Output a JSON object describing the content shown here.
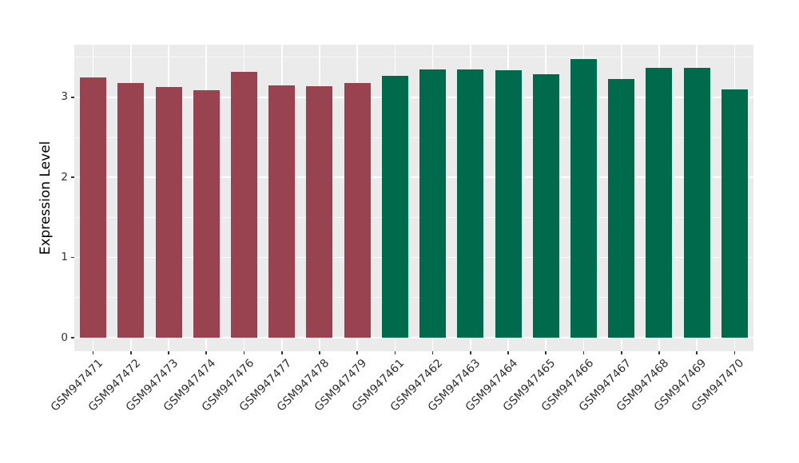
{
  "chart_data": {
    "type": "bar",
    "title": "",
    "xlabel": "",
    "ylabel": "Expression Level",
    "ylim": [
      -0.17,
      3.65
    ],
    "yticks": [
      0,
      1,
      2,
      3
    ],
    "minor_gridlines": [
      0.5,
      1.5,
      2.5,
      3.5
    ],
    "grid": "on",
    "legend": "none",
    "panel_background": "#EBEBEB",
    "gridline_color": "#FFFFFF",
    "figure_background": "#FFFFFF",
    "tick_text_color": "#303030",
    "groups": [
      {
        "name": "group-1",
        "color": "#9A4350"
      },
      {
        "name": "group-2",
        "color": "#006A4C"
      }
    ],
    "bars": [
      {
        "label": "GSM947471",
        "value": 3.25,
        "group": 0
      },
      {
        "label": "GSM947472",
        "value": 3.18,
        "group": 0
      },
      {
        "label": "GSM947473",
        "value": 3.13,
        "group": 0
      },
      {
        "label": "GSM947474",
        "value": 3.09,
        "group": 0
      },
      {
        "label": "GSM947476",
        "value": 3.32,
        "group": 0
      },
      {
        "label": "GSM947477",
        "value": 3.15,
        "group": 0
      },
      {
        "label": "GSM947478",
        "value": 3.14,
        "group": 0
      },
      {
        "label": "GSM947479",
        "value": 3.18,
        "group": 0
      },
      {
        "label": "GSM947461",
        "value": 3.27,
        "group": 1
      },
      {
        "label": "GSM947462",
        "value": 3.35,
        "group": 1
      },
      {
        "label": "GSM947463",
        "value": 3.35,
        "group": 1
      },
      {
        "label": "GSM947464",
        "value": 3.34,
        "group": 1
      },
      {
        "label": "GSM947465",
        "value": 3.29,
        "group": 1
      },
      {
        "label": "GSM947466",
        "value": 3.48,
        "group": 1
      },
      {
        "label": "GSM947467",
        "value": 3.23,
        "group": 1
      },
      {
        "label": "GSM947468",
        "value": 3.37,
        "group": 1
      },
      {
        "label": "GSM947469",
        "value": 3.37,
        "group": 1
      },
      {
        "label": "GSM947470",
        "value": 3.1,
        "group": 1
      }
    ]
  }
}
